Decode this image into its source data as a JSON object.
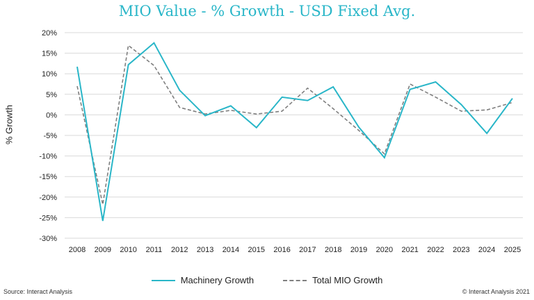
{
  "chart_data": {
    "type": "line",
    "title": "MIO Value - % Growth - USD Fixed Avg.",
    "xlabel": "",
    "ylabel": "% Growth",
    "categories": [
      "2008",
      "2009",
      "2010",
      "2011",
      "2012",
      "2013",
      "2014",
      "2015",
      "2016",
      "2017",
      "2018",
      "2019",
      "2020",
      "2021",
      "2022",
      "2023",
      "2024",
      "2025"
    ],
    "ylim": [
      -30,
      20
    ],
    "yticks": [
      20,
      15,
      10,
      5,
      0,
      -5,
      -10,
      -15,
      -20,
      -25,
      -30
    ],
    "ytick_labels": [
      "20%",
      "15%",
      "10%",
      "5%",
      "0%",
      "-5%",
      "-10%",
      "-15%",
      "-20%",
      "-25%",
      "-30%"
    ],
    "grid": true,
    "legend_position": "bottom",
    "series": [
      {
        "name": "Machinery Growth",
        "style": "solid",
        "color": "#29b6c8",
        "values": [
          11.7,
          -25.8,
          12.2,
          17.5,
          6.0,
          -0.2,
          2.2,
          -3.1,
          4.3,
          3.5,
          6.8,
          -3.0,
          -10.4,
          6.2,
          8.0,
          2.5,
          -4.5,
          4.0
        ]
      },
      {
        "name": "Total MIO Growth",
        "style": "dashed",
        "color": "#7f7f7f",
        "values": [
          7.0,
          -21.8,
          16.9,
          12.0,
          1.8,
          0.2,
          1.1,
          0.2,
          0.9,
          6.5,
          1.5,
          -3.8,
          -9.5,
          7.5,
          4.3,
          0.9,
          1.2,
          3.0
        ]
      }
    ]
  },
  "footer": {
    "source": "Source: Interact Analysis",
    "copyright": "© Interact Analysis 2021"
  }
}
